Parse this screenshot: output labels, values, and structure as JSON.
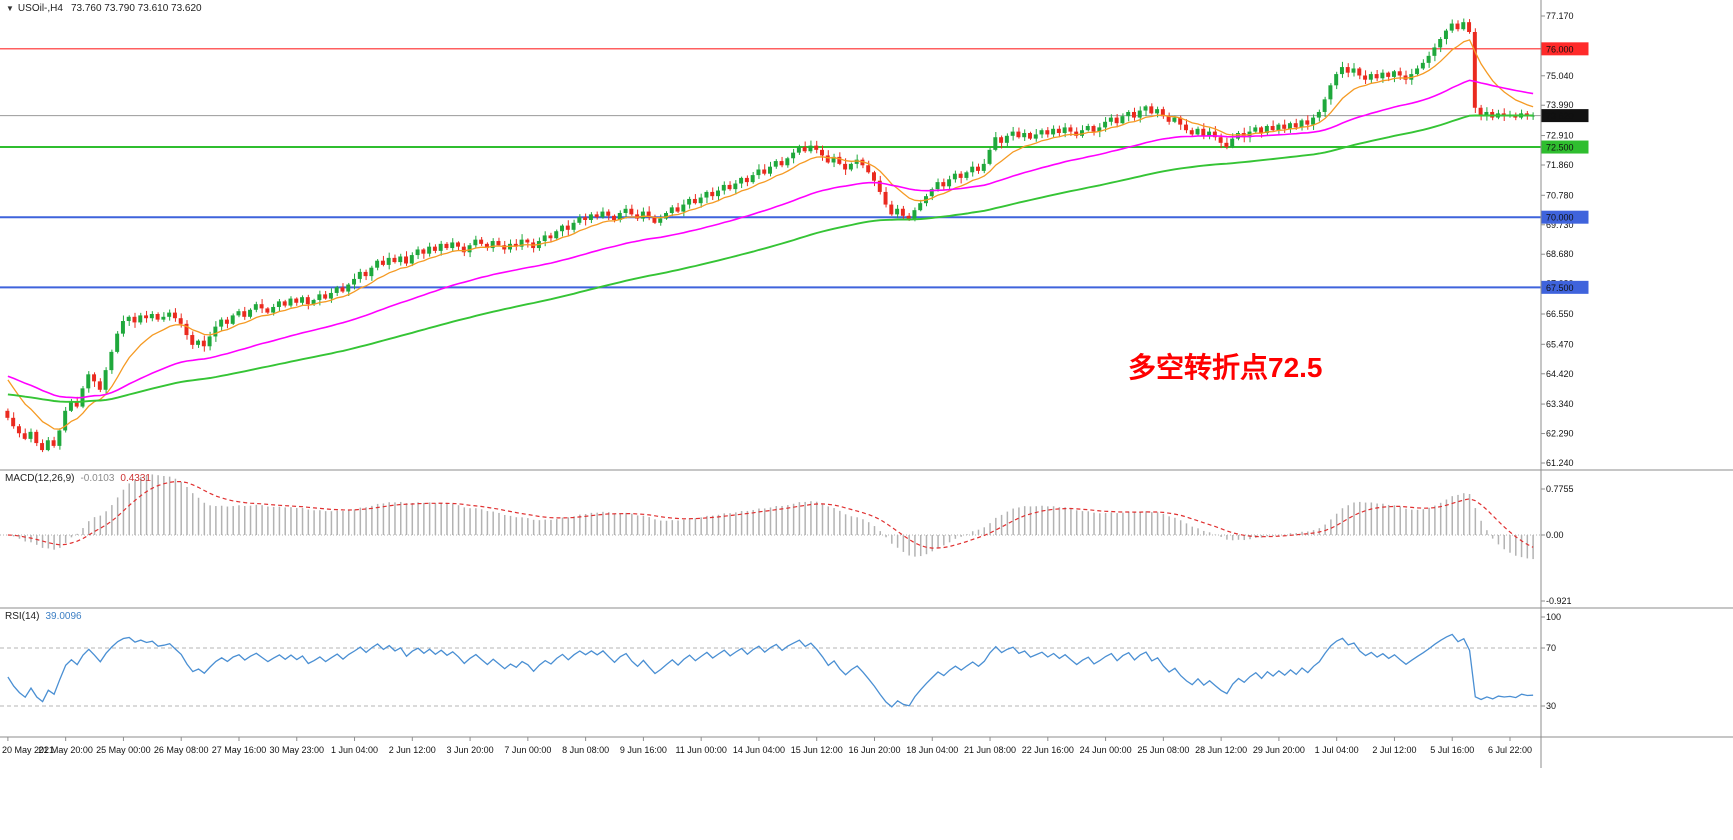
{
  "header": {
    "marker": "▼",
    "symbol": "USOil-,H4",
    "ohlc": "73.760 73.790 73.610 73.620"
  },
  "macd_panel": {
    "label": "MACD(12,26,9)",
    "main_value": "-0.0103",
    "signal_value": "0.4331"
  },
  "rsi_panel": {
    "label": "RSI(14)",
    "value": "39.0096"
  },
  "annotation": {
    "text": "多空转折点72.5",
    "color": "#ff0000"
  },
  "colors": {
    "background": "#ffffff",
    "pane_border": "#8e8e8e",
    "axis_text": "#111111",
    "current_price_badge": "#111111",
    "resistance_red": "#ff2a2a",
    "pivot_green": "#2fbe2f",
    "support_blue": "#3f63dc"
  },
  "chart_data": {
    "type": "candlestick",
    "symbol": "USOil",
    "timeframe": "H4",
    "title": "USOil-,H4 73.760 73.790 73.610 73.620",
    "last_ohlc": {
      "open": 73.76,
      "high": 73.79,
      "low": 73.61,
      "close": 73.62
    },
    "y_min": 61.24,
    "y_max": 77.17,
    "up_color": "#1fa83c",
    "down_color": "#ea2a1f",
    "price_axis_ticks": [
      {
        "label": "77.170",
        "price": 77.17
      },
      {
        "label": "75.040",
        "price": 75.04
      },
      {
        "label": "73.990",
        "price": 73.99
      },
      {
        "label": "72.910",
        "price": 72.91
      },
      {
        "label": "71.860",
        "price": 71.86
      },
      {
        "label": "70.780",
        "price": 70.78
      },
      {
        "label": "69.730",
        "price": 69.73
      },
      {
        "label": "68.680",
        "price": 68.68
      },
      {
        "label": "67.630",
        "price": 67.63
      },
      {
        "label": "66.550",
        "price": 66.55
      },
      {
        "label": "65.470",
        "price": 65.47
      },
      {
        "label": "64.420",
        "price": 64.42
      },
      {
        "label": "63.340",
        "price": 63.34
      },
      {
        "label": "62.290",
        "price": 62.29
      },
      {
        "label": "61.240",
        "price": 61.24
      }
    ],
    "price_badges": [
      {
        "label": "76.000",
        "price": 76.0,
        "bg": "#ff2a2a",
        "fg": "#ffffff"
      },
      {
        "label": "73.620",
        "price": 73.62,
        "bg": "#111111",
        "fg": "#ffffff"
      },
      {
        "label": "72.500",
        "price": 72.5,
        "bg": "#2fbe2f",
        "fg": "#ffff80"
      },
      {
        "label": "70.000",
        "price": 70.0,
        "bg": "#3f63dc",
        "fg": "#ffffff"
      },
      {
        "label": "67.500",
        "price": 67.5,
        "bg": "#3f63dc",
        "fg": "#ffffff"
      }
    ],
    "hlines": [
      {
        "name": "resistance-76",
        "price": 76.0,
        "color": "#ff2a2a",
        "w": 1.2
      },
      {
        "name": "current-price",
        "price": 73.62,
        "color": "#9a9a9a",
        "w": 1
      },
      {
        "name": "pivot-72-5",
        "price": 72.5,
        "color": "#2fbe2f",
        "w": 2
      },
      {
        "name": "support-70",
        "price": 70.0,
        "color": "#3f63dc",
        "w": 2
      },
      {
        "name": "support-67-5",
        "price": 67.5,
        "color": "#3f63dc",
        "w": 2
      }
    ],
    "time_labels": [
      "20 May 2021",
      "21 May 20:00",
      "25 May 00:00",
      "26 May 08:00",
      "27 May 16:00",
      "30 May 23:00",
      "1 Jun 04:00",
      "2 Jun 12:00",
      "3 Jun 20:00",
      "7 Jun 00:00",
      "8 Jun 08:00",
      "9 Jun 16:00",
      "11 Jun 00:00",
      "14 Jun 04:00",
      "15 Jun 12:00",
      "16 Jun 20:00",
      "18 Jun 04:00",
      "21 Jun 08:00",
      "22 Jun 16:00",
      "24 Jun 00:00",
      "25 Jun 08:00",
      "28 Jun 12:00",
      "29 Jun 20:00",
      "1 Jul 04:00",
      "2 Jul 12:00",
      "5 Jul 16:00",
      "6 Jul 22:00"
    ],
    "candles_per_label": 10,
    "first_open": 63.1,
    "closes": [
      62.85,
      62.55,
      62.3,
      62.1,
      62.35,
      61.95,
      61.7,
      62.05,
      61.85,
      62.4,
      63.1,
      63.45,
      63.25,
      63.9,
      64.4,
      64.15,
      63.85,
      64.55,
      65.2,
      65.85,
      66.3,
      66.45,
      66.25,
      66.5,
      66.4,
      66.55,
      66.35,
      66.45,
      66.6,
      66.4,
      66.2,
      65.8,
      65.45,
      65.6,
      65.4,
      65.75,
      66.1,
      66.35,
      66.2,
      66.5,
      66.65,
      66.45,
      66.7,
      66.9,
      66.75,
      66.6,
      66.8,
      67.0,
      66.85,
      67.1,
      66.95,
      67.15,
      66.9,
      67.05,
      67.25,
      67.1,
      67.3,
      67.5,
      67.35,
      67.6,
      67.8,
      68.05,
      67.9,
      68.2,
      68.45,
      68.3,
      68.55,
      68.4,
      68.6,
      68.35,
      68.65,
      68.85,
      68.7,
      68.95,
      68.8,
      69.05,
      68.9,
      69.1,
      68.95,
      68.75,
      69.0,
      69.2,
      69.05,
      68.9,
      69.15,
      69.0,
      68.85,
      69.05,
      68.95,
      69.2,
      69.1,
      68.9,
      69.15,
      69.35,
      69.25,
      69.5,
      69.7,
      69.55,
      69.8,
      70.0,
      69.9,
      70.1,
      70.0,
      70.2,
      70.05,
      69.9,
      70.15,
      70.3,
      70.1,
      69.95,
      70.2,
      70.0,
      69.8,
      69.95,
      70.15,
      70.35,
      70.2,
      70.45,
      70.65,
      70.5,
      70.7,
      70.9,
      70.75,
      70.95,
      71.15,
      71.0,
      71.2,
      71.4,
      71.25,
      71.5,
      71.7,
      71.55,
      71.8,
      72.0,
      71.85,
      72.1,
      72.3,
      72.5,
      72.35,
      72.55,
      72.4,
      72.2,
      71.95,
      72.15,
      71.9,
      71.7,
      71.9,
      72.05,
      71.85,
      71.6,
      71.3,
      70.9,
      70.45,
      70.1,
      70.3,
      70.05,
      69.95,
      70.25,
      70.5,
      70.75,
      71.0,
      71.25,
      71.1,
      71.35,
      71.55,
      71.4,
      71.6,
      71.8,
      71.65,
      71.9,
      72.4,
      72.85,
      72.65,
      72.9,
      73.05,
      72.85,
      73.0,
      72.8,
      72.95,
      73.1,
      72.95,
      73.15,
      73.0,
      73.2,
      73.05,
      72.9,
      73.1,
      73.25,
      73.05,
      73.2,
      73.4,
      73.55,
      73.35,
      73.6,
      73.75,
      73.55,
      73.8,
      73.95,
      73.7,
      73.85,
      73.6,
      73.4,
      73.55,
      73.3,
      73.1,
      72.95,
      73.15,
      72.9,
      73.05,
      72.85,
      72.65,
      72.5,
      72.8,
      73.0,
      72.85,
      73.05,
      73.2,
      73.0,
      73.25,
      73.1,
      73.3,
      73.15,
      73.35,
      73.2,
      73.45,
      73.3,
      73.55,
      73.75,
      74.2,
      74.7,
      75.1,
      75.35,
      75.15,
      75.3,
      75.05,
      74.9,
      75.1,
      74.95,
      75.15,
      75.0,
      75.2,
      75.05,
      74.9,
      75.1,
      75.3,
      75.5,
      75.75,
      76.05,
      76.35,
      76.65,
      76.9,
      76.7,
      76.95,
      76.6,
      73.9,
      73.6,
      73.75,
      73.55,
      73.7,
      73.62,
      73.65,
      73.55,
      73.7,
      73.61,
      73.62
    ],
    "moving_averages": [
      {
        "name": "fast-orange",
        "period": 10,
        "seed": 64.5,
        "color": "#f59a23",
        "w": 1.3
      },
      {
        "name": "mid-magenta",
        "period": 45,
        "seed": 64.4,
        "color": "#ff00ff",
        "w": 1.6
      },
      {
        "name": "slow-green",
        "period": 100,
        "seed": 63.7,
        "color": "#35c435",
        "w": 1.9
      }
    ],
    "macd": {
      "fast": 12,
      "slow": 26,
      "signal": 9,
      "last_main": -0.0103,
      "last_signal": 0.4331,
      "axis_ticks": [
        "0.7755",
        "0.00",
        "-0.921"
      ],
      "hist_color": "#b3b3b3",
      "signal_color": "#e03030"
    },
    "rsi": {
      "period": 14,
      "last": 39.0096,
      "axis_ticks": [
        "100",
        "70",
        "30"
      ],
      "levels": [
        70,
        30
      ],
      "color": "#4a8fd3"
    }
  }
}
